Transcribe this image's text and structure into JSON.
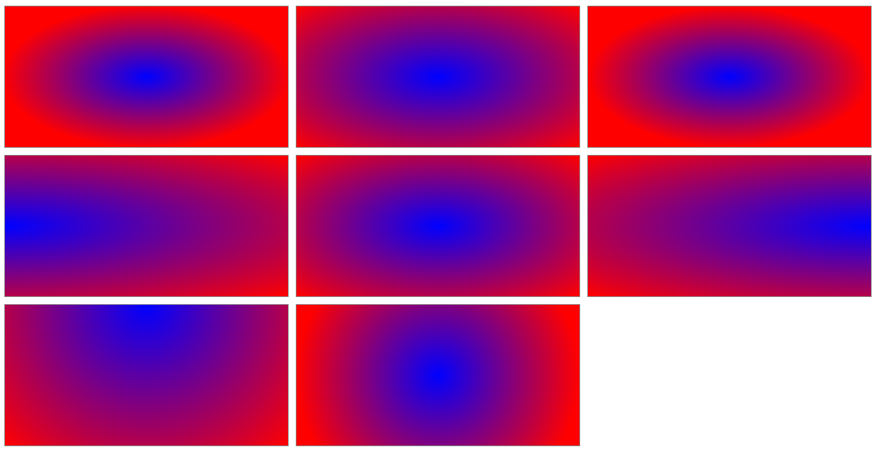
{
  "gradients": [
    {
      "name": "gradient-ellipse-farthest-corner-center",
      "inner_color": "#0000ff",
      "outer_color": "#ff0000",
      "position": "center"
    },
    {
      "name": "gradient-circle-center",
      "inner_color": "#0000ff",
      "outer_color": "#ff0000",
      "position": "center"
    },
    {
      "name": "gradient-ellipse-farthest-side-center",
      "inner_color": "#0000ff",
      "outer_color": "#ff0000",
      "position": "center"
    },
    {
      "name": "gradient-left-center",
      "inner_color": "#0000ff",
      "outer_color": "#ff0000",
      "position": "left"
    },
    {
      "name": "gradient-center",
      "inner_color": "#0000ff",
      "outer_color": "#ff0000",
      "position": "center"
    },
    {
      "name": "gradient-right-center",
      "inner_color": "#0000ff",
      "outer_color": "#ff0000",
      "position": "right"
    },
    {
      "name": "gradient-top-center",
      "inner_color": "#0000ff",
      "outer_color": "#ff0000",
      "position": "top"
    },
    {
      "name": "gradient-circle-farthest-side-center",
      "inner_color": "#0000ff",
      "outer_color": "#ff0000",
      "position": "center"
    }
  ],
  "colors": {
    "background": "#ffffff",
    "border": "#8a8a8a"
  }
}
